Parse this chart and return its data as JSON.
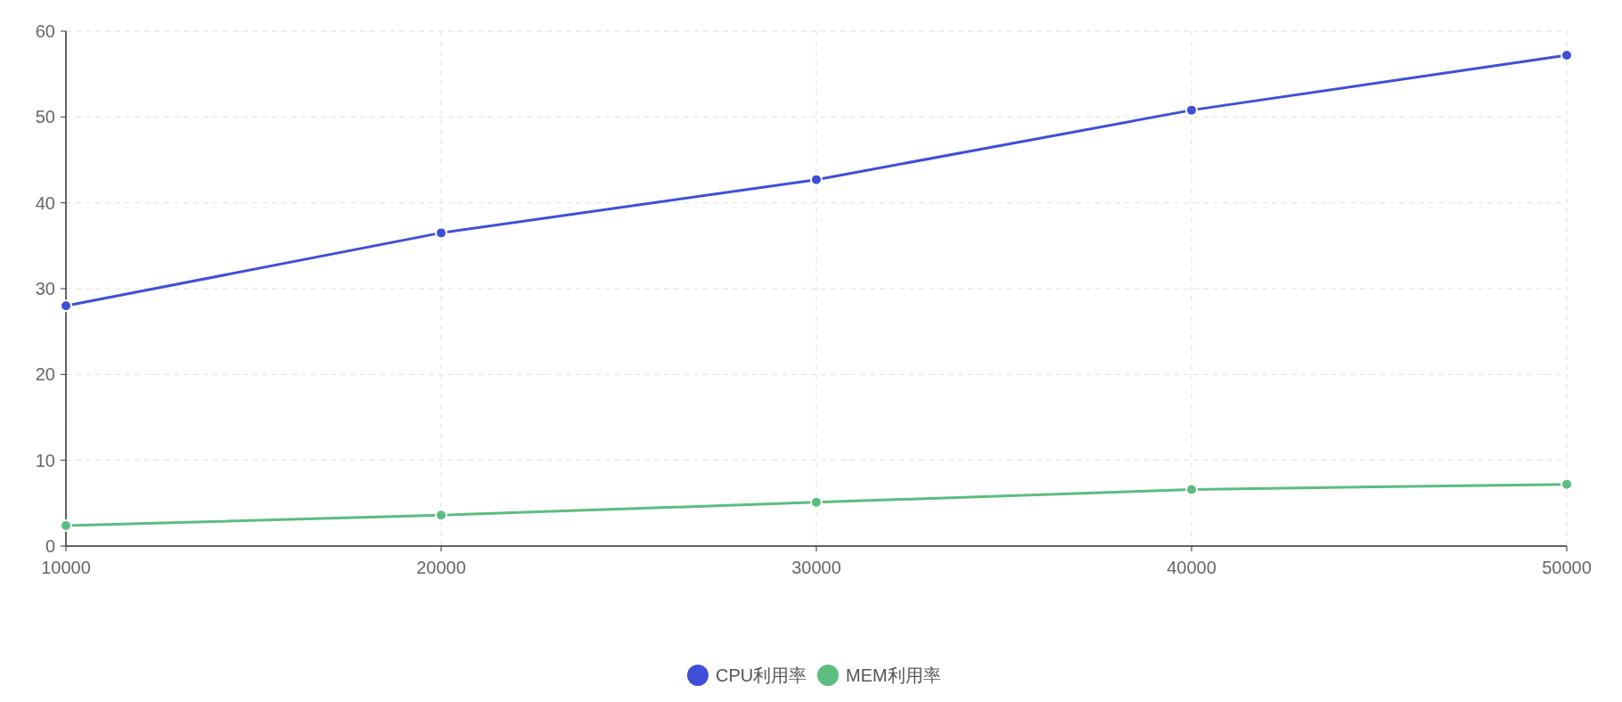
{
  "chart_data": {
    "type": "line",
    "x": [
      10000,
      20000,
      30000,
      40000,
      50000
    ],
    "series": [
      {
        "name": "CPU利用率",
        "color": "#3f4fd8",
        "values": [
          28,
          36.5,
          42.7,
          50.8,
          57.2
        ]
      },
      {
        "name": "MEM利用率",
        "color": "#5bbd7f",
        "values": [
          2.4,
          3.6,
          5.1,
          6.6,
          7.2
        ]
      }
    ],
    "xlim": [
      10000,
      50000
    ],
    "ylim": [
      0,
      60
    ],
    "xticks": [
      10000,
      20000,
      30000,
      40000,
      50000
    ],
    "yticks": [
      0,
      10,
      20,
      30,
      40,
      50,
      60
    ],
    "grid": true,
    "legend": "bottom",
    "marker": "circle",
    "line_style": "solid"
  }
}
